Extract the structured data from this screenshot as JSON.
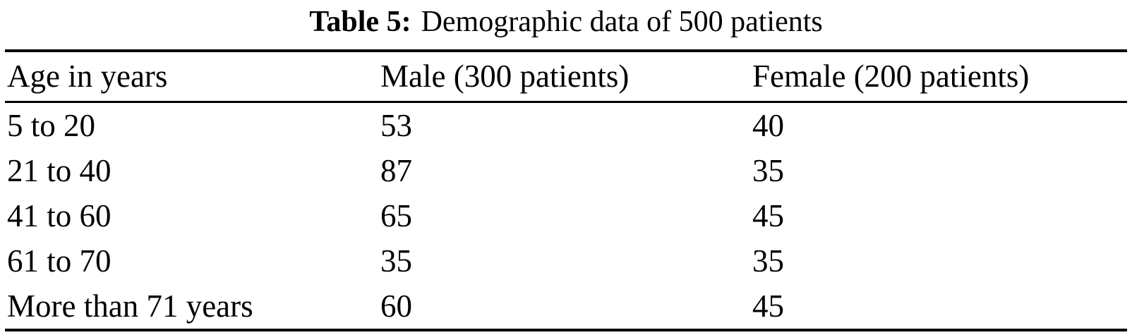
{
  "title": {
    "label": "Table 5:",
    "text": "Demographic data of 500 patients"
  },
  "table": {
    "columns": [
      "Age in years",
      "Male (300 patients)",
      "Female (200 patients)"
    ],
    "rows": [
      {
        "age": "5 to 20",
        "male": "53",
        "female": "40"
      },
      {
        "age": "21 to 40",
        "male": "87",
        "female": "35"
      },
      {
        "age": "41 to 60",
        "male": "65",
        "female": "45"
      },
      {
        "age": "61 to 70",
        "male": "35",
        "female": "35"
      },
      {
        "age": "More than 71 years",
        "male": "60",
        "female": "45"
      }
    ]
  },
  "chart_data": {
    "type": "table",
    "title": "Table 5: Demographic data of 500 patients",
    "columns": [
      "Age in years",
      "Male (300 patients)",
      "Female (200 patients)"
    ],
    "categories": [
      "5 to 20",
      "21 to 40",
      "41 to 60",
      "61 to 70",
      "More than 71 years"
    ],
    "series": [
      {
        "name": "Male (300 patients)",
        "values": [
          53,
          87,
          65,
          35,
          60
        ]
      },
      {
        "name": "Female (200 patients)",
        "values": [
          40,
          35,
          45,
          35,
          45
        ]
      }
    ]
  }
}
